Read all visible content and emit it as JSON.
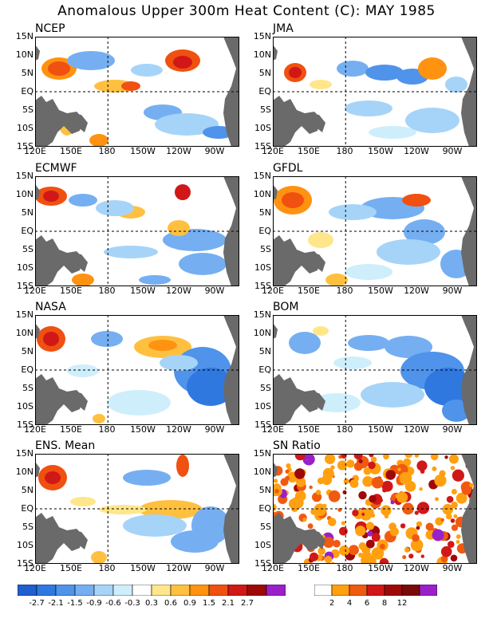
{
  "title": "Anomalous Upper 300m Heat Content (C): MAY 1985",
  "panels": [
    {
      "name": "NCEP"
    },
    {
      "name": "JMA"
    },
    {
      "name": "ECMWF"
    },
    {
      "name": "GFDL"
    },
    {
      "name": "NASA"
    },
    {
      "name": "BOM"
    },
    {
      "name": "ENS. Mean"
    },
    {
      "name": "SN Ratio"
    }
  ],
  "lat_labels": [
    "15N",
    "10N",
    "5N",
    "EQ",
    "5S",
    "10S",
    "15S"
  ],
  "lon_labels": [
    "120E",
    "150E",
    "180",
    "150W",
    "120W",
    "90W"
  ],
  "anomaly_colorbar": {
    "colors": [
      "#1f5fd0",
      "#2f78e0",
      "#4f93ea",
      "#75aff2",
      "#a6d4f8",
      "#cfeefc",
      "#ffffff",
      "#ffe68a",
      "#ffc040",
      "#ff9210",
      "#f05010",
      "#d01818",
      "#a00808",
      "#9a20c8"
    ],
    "labels": [
      "-2.7",
      "-2.1",
      "-1.5",
      "-0.9",
      "-0.6",
      "-0.3",
      "0.3",
      "0.6",
      "0.9",
      "1.5",
      "2.1",
      "2.7"
    ]
  },
  "snr_colorbar": {
    "colors": [
      "#ffffff",
      "#ffa010",
      "#f05a10",
      "#d01818",
      "#a00808",
      "#7a0a0a",
      "#9a20c8"
    ],
    "labels": [
      "2",
      "4",
      "6",
      "8",
      "12"
    ]
  },
  "colors": {
    "land": "#6a6a6a",
    "frame": "#000000"
  }
}
